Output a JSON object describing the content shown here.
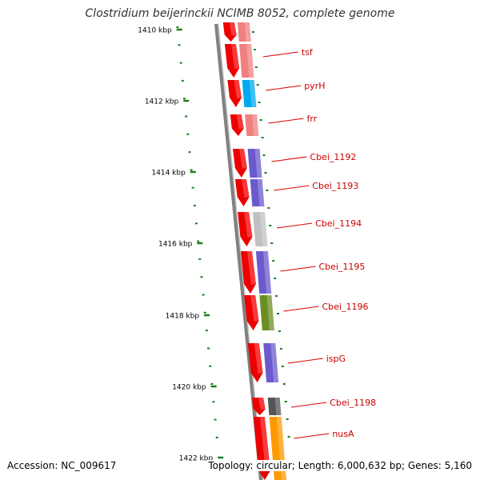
{
  "title": "Clostridium beijerinckii NCIMB 8052, complete genome",
  "footer": {
    "accession": "Accession: NC_009617",
    "summary": "Topology: circular; Length: 6,000,632 bp; Genes: 5,160"
  },
  "colors": {
    "backbone": "#808080",
    "tick": "#1a7f1a",
    "strand_cds": "#ee0000",
    "label_line": "#dd0000",
    "label_text": "#cc0000",
    "pink_feature": "#f08080",
    "cyan_feature": "#00aaee",
    "purple_feature": "#6a5acd",
    "gray_feature": "#c0c0c0",
    "green_feature": "#6b8e23",
    "dark_feature": "#555555",
    "orange_feature": "#ff9900"
  },
  "scale": {
    "unit": "kbp",
    "labels": [
      "1410 kbp",
      "1412 kbp",
      "1414 kbp",
      "1416 kbp",
      "1418 kbp",
      "1420 kbp",
      "1422 kbp"
    ]
  },
  "genes": [
    {
      "name": "",
      "color": "pink"
    },
    {
      "name": "tsf",
      "color": "pink"
    },
    {
      "name": "pyrH",
      "color": "cyan"
    },
    {
      "name": "frr",
      "color": "pink"
    },
    {
      "name": "Cbei_1192",
      "color": "purple"
    },
    {
      "name": "Cbei_1193",
      "color": "purple"
    },
    {
      "name": "Cbei_1194",
      "color": "gray"
    },
    {
      "name": "Cbei_1195",
      "color": "purple"
    },
    {
      "name": "Cbei_1196",
      "color": "green"
    },
    {
      "name": "ispG",
      "color": "purple"
    },
    {
      "name": "Cbei_1198",
      "color": "dark"
    },
    {
      "name": "nusA",
      "color": "orange"
    },
    {
      "name": "",
      "color": "pink"
    }
  ]
}
